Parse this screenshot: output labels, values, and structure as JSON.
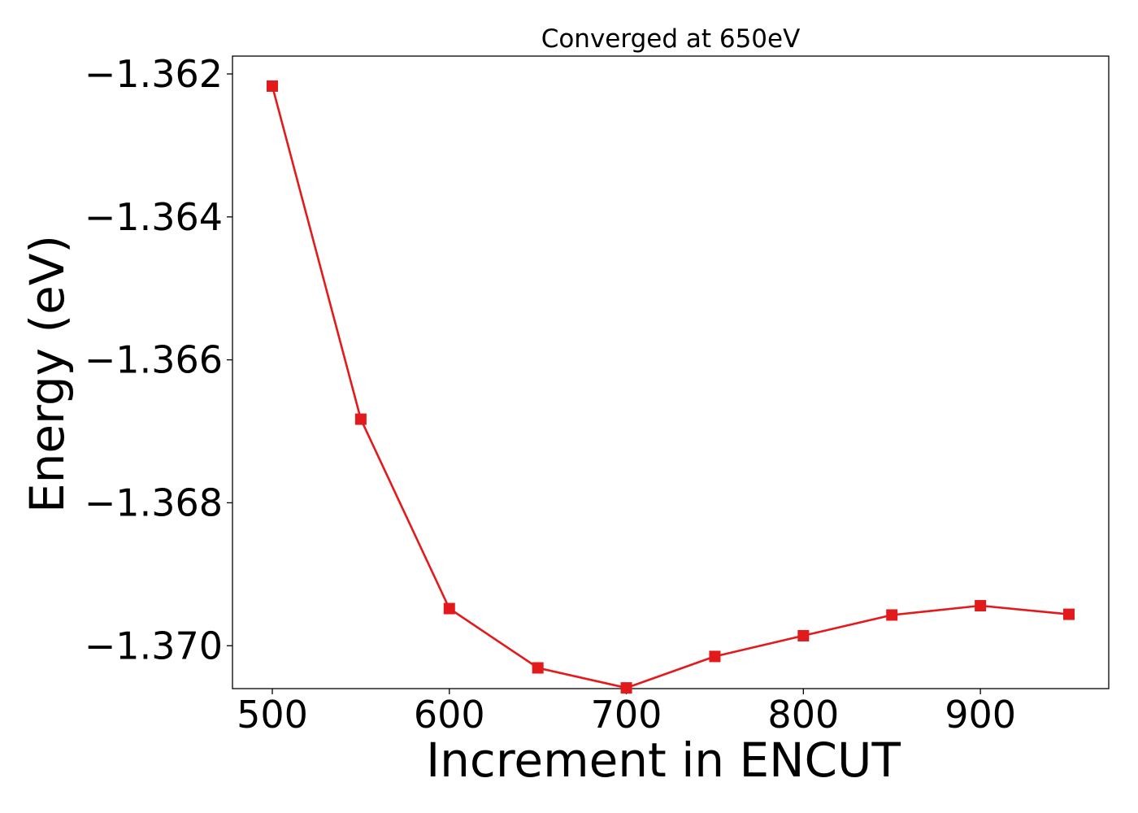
{
  "chart_data": {
    "type": "line",
    "title": "Converged at 650eV",
    "xlabel": "Increment in ENCUT",
    "ylabel": "Energy (eV)",
    "xlim": [
      477.5,
      972.5
    ],
    "ylim": [
      -1.3706,
      -1.36175
    ],
    "xticks": [
      500,
      600,
      700,
      800,
      900
    ],
    "xtick_labels": [
      "500",
      "600",
      "700",
      "800",
      "900"
    ],
    "yticks": [
      -1.362,
      -1.364,
      -1.366,
      -1.368,
      -1.37
    ],
    "ytick_labels": [
      "−1.362",
      "−1.364",
      "−1.366",
      "−1.368",
      "−1.370"
    ],
    "grid": false,
    "legend": "none",
    "series": [
      {
        "color": "#e31a1c",
        "marker": "square",
        "x": [
          500,
          550,
          600,
          650,
          700,
          750,
          800,
          850,
          900,
          950
        ],
        "y": [
          -1.36217,
          -1.36683,
          -1.36948,
          -1.37031,
          -1.37059,
          -1.37015,
          -1.36986,
          -1.36957,
          -1.36944,
          -1.36956
        ]
      }
    ]
  }
}
